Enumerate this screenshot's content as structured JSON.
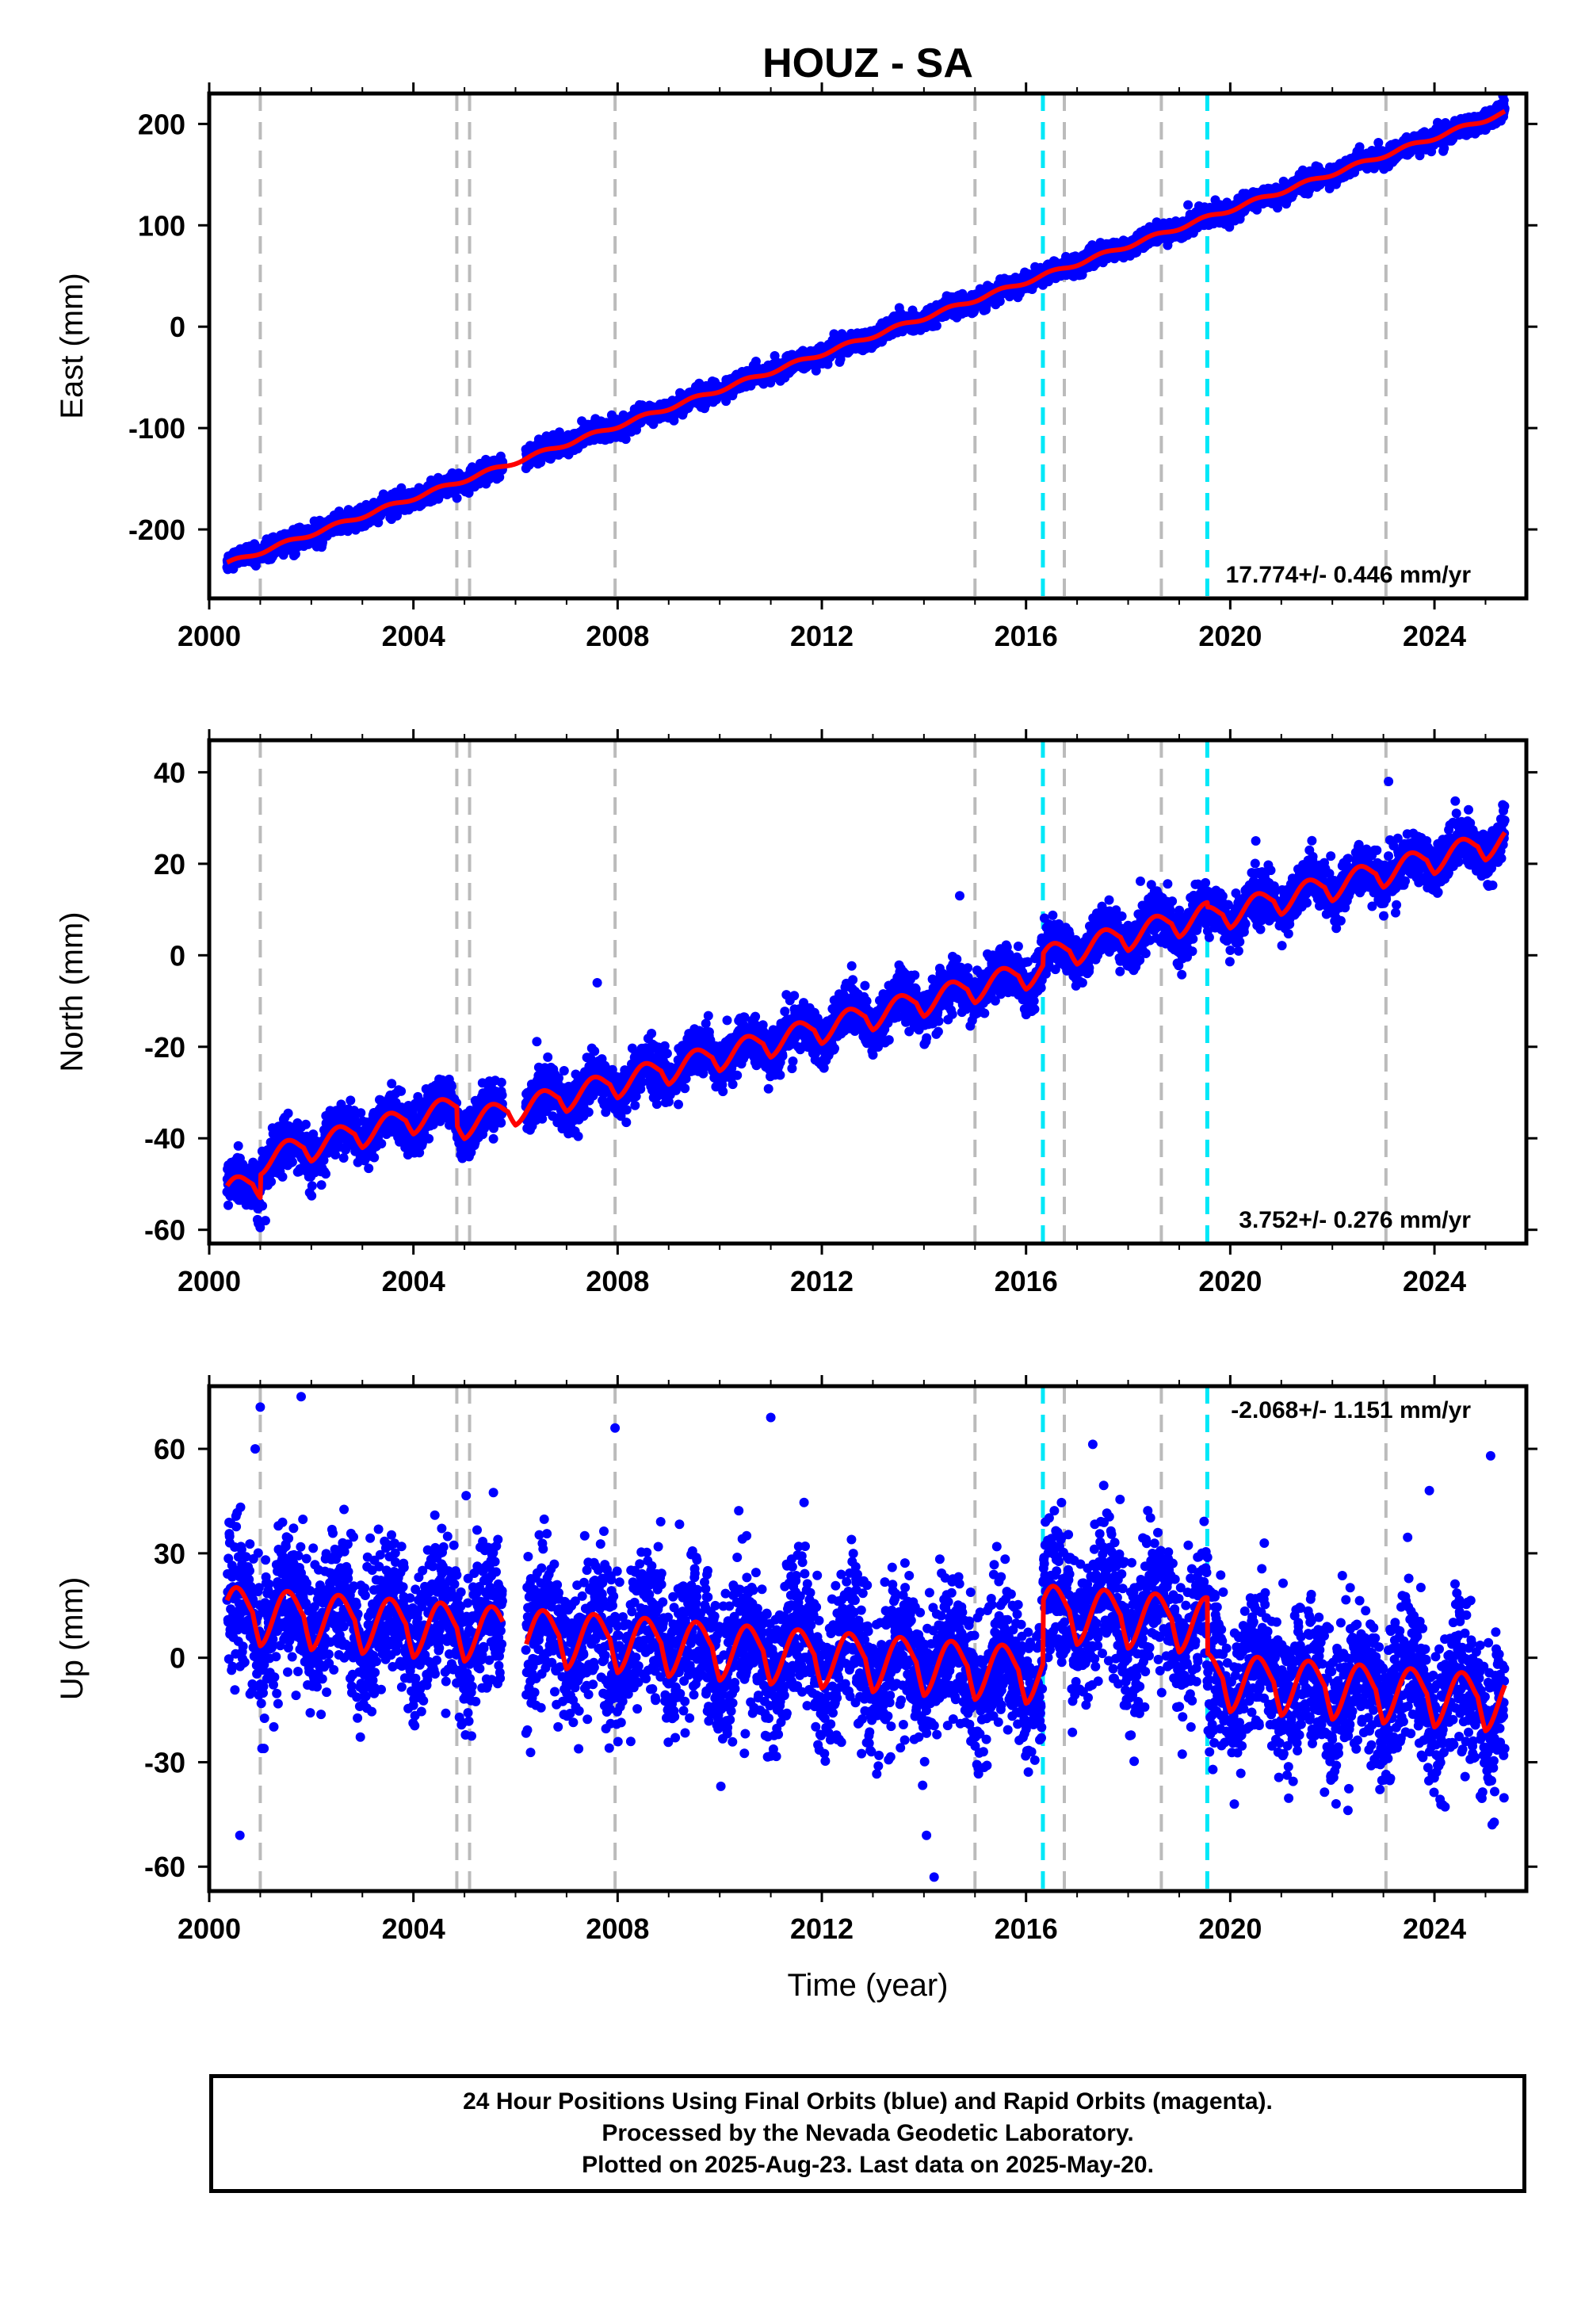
{
  "chart_data": {
    "type": "scatter",
    "title": "HOUZ - SA",
    "xlabel": "Time (year)",
    "xlim": [
      2000.0,
      2025.8
    ],
    "xticks": [
      2000,
      2004,
      2008,
      2012,
      2016,
      2020,
      2024
    ],
    "colors": {
      "data": "#0000ff",
      "model": "#ff0000",
      "offset_line": "#bbbbbb",
      "equipment_line": "#00e8f8"
    },
    "data_start": 2000.35,
    "data_end": 2025.38,
    "gaps": [
      [
        2005.75,
        2006.2
      ]
    ],
    "vertical_lines_gray": [
      2001.0,
      2004.85,
      2005.1,
      2007.95,
      2015.0,
      2016.75,
      2018.65,
      2023.05
    ],
    "vertical_lines_cyan": [
      2016.33,
      2019.55
    ],
    "panels": [
      {
        "id": "east",
        "ylabel": "East (mm)",
        "ylim": [
          -268,
          230
        ],
        "yticks": [
          -200,
          -100,
          0,
          100,
          200
        ],
        "rate_text": "17.774+/- 0.446 mm/yr",
        "rate_position": "bottom-right",
        "model": {
          "intercept_2000": -240.0,
          "rate": 17.774,
          "annual_amp": 2.0,
          "steps": []
        },
        "noise": 4.5,
        "outliers": []
      },
      {
        "id": "north",
        "ylabel": "North (mm)",
        "ylim": [
          -63,
          47
        ],
        "yticks": [
          -60,
          -40,
          -20,
          0,
          20,
          40
        ],
        "rate_text": "3.752+/- 0.276 mm/yr",
        "rate_position": "bottom-right",
        "model": {
          "intercept_2000": -52.5,
          "rate": 2.97,
          "annual_amp": 2.2,
          "steps": [
            [
              2001.0,
              5
            ],
            [
              2004.85,
              -4
            ],
            [
              2016.33,
              2.5
            ],
            [
              2019.55,
              -1.0
            ]
          ]
        },
        "noise": 2.6,
        "outliers": [
          [
            2007.6,
            -6
          ],
          [
            2001.1,
            -58
          ],
          [
            2014.7,
            13
          ],
          [
            2018.2,
            9
          ],
          [
            2024.8,
            24
          ],
          [
            2023.1,
            38
          ],
          [
            2020.5,
            25
          ]
        ]
      },
      {
        "id": "up",
        "ylabel": "Up (mm)",
        "ylim": [
          -67,
          78
        ],
        "yticks": [
          -60,
          -30,
          0,
          30,
          60
        ],
        "rate_text": "-2.068+/- 1.151 mm/yr",
        "rate_position": "top-right",
        "model": {
          "intercept_2000": 14.0,
          "rate": -1.1,
          "annual_amp": 6.0,
          "steps": [
            [
              2016.33,
              18
            ],
            [
              2019.55,
              -16
            ]
          ]
        },
        "noise": 10.5,
        "outliers": [
          [
            2000.6,
            -51
          ],
          [
            2001.8,
            75
          ],
          [
            2007.95,
            66
          ],
          [
            2011.0,
            69
          ],
          [
            2014.2,
            -63
          ],
          [
            2014.05,
            -51
          ],
          [
            2025.1,
            58
          ],
          [
            2023.9,
            48
          ],
          [
            2001.0,
            72
          ],
          [
            2000.9,
            60
          ]
        ]
      }
    ]
  },
  "footer": {
    "line1": "24 Hour Positions Using Final Orbits (blue) and Rapid Orbits (magenta).",
    "line2": "Processed by the Nevada Geodetic Laboratory.",
    "line3": "Plotted on 2025-Aug-23. Last data on 2025-May-20."
  }
}
